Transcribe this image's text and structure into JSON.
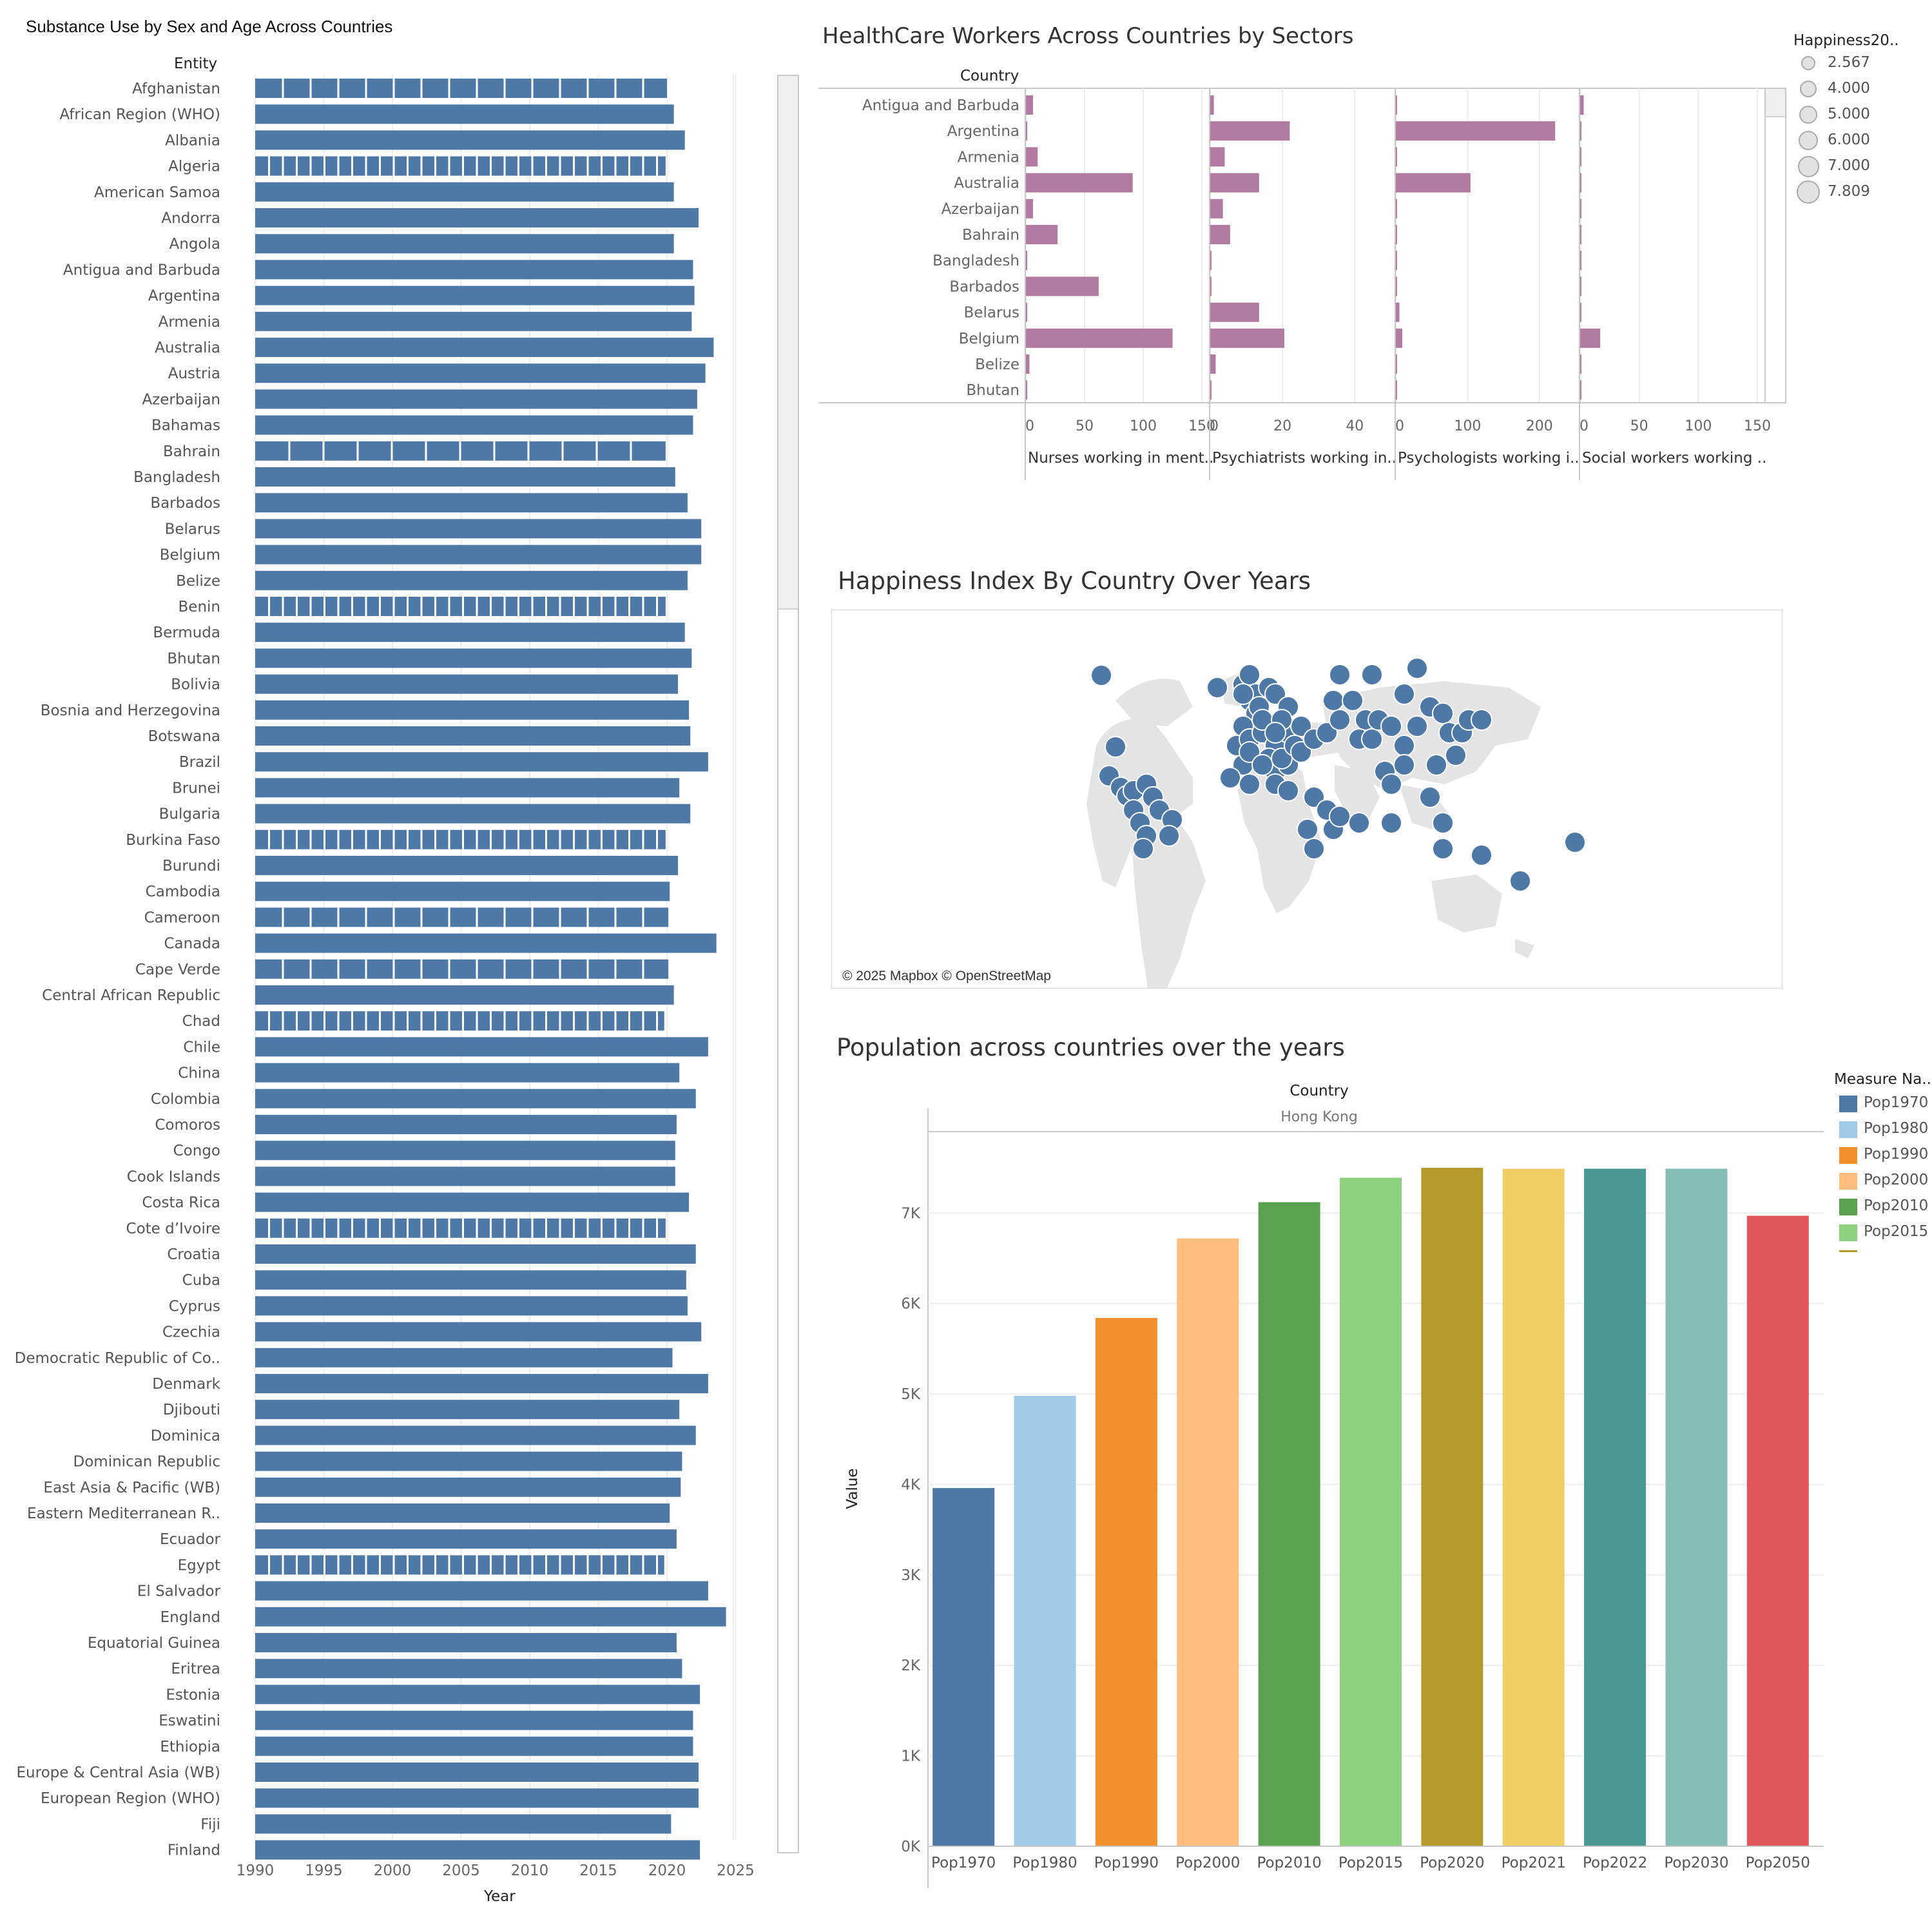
{
  "substance": {
    "title": "Substance Use by Sex and Age Across Countries",
    "entity_header": "Entity",
    "xlabel": "Year",
    "color": "#4e79a7"
  },
  "healthcare": {
    "title": "HealthCare Workers Across Countries by Sectors",
    "row_header": "Country",
    "color": "#b07aa1"
  },
  "happiness_legend": {
    "title": "Happiness20..",
    "values": [
      "2.567",
      "4.000",
      "5.000",
      "6.000",
      "7.000",
      "7.809"
    ]
  },
  "map": {
    "title": "Happiness Index By Country Over Years",
    "attribution": "© 2025 Mapbox © OpenStreetMap",
    "dot_color": "#4e79a7"
  },
  "population": {
    "title": "Population across countries over the years",
    "column_header": "Country",
    "country": "Hong Kong",
    "ylabel": "Value",
    "legend_title": "Measure Na..",
    "legend_items": [
      "Pop1970",
      "Pop1980",
      "Pop1990",
      "Pop2000",
      "Pop2010",
      "Pop2015"
    ]
  },
  "chart_data": [
    {
      "type": "bar",
      "title": "Substance Use by Sex and Age Across Countries",
      "ylabel": "Entity",
      "xlabel": "Year",
      "xlim": [
        1988,
        2029
      ],
      "xticks": [
        "1990",
        "1995",
        "2000",
        "2005",
        "2010",
        "2015",
        "2020",
        "2025"
      ],
      "grid": true,
      "categories": [
        "Afghanistan",
        "African Region (WHO)",
        "Albania",
        "Algeria",
        "American Samoa",
        "Andorra",
        "Angola",
        "Antigua and Barbuda",
        "Argentina",
        "Armenia",
        "Australia",
        "Austria",
        "Azerbaijan",
        "Bahamas",
        "Bahrain",
        "Bangladesh",
        "Barbados",
        "Belarus",
        "Belgium",
        "Belize",
        "Benin",
        "Bermuda",
        "Bhutan",
        "Bolivia",
        "Bosnia and Herzegovina",
        "Botswana",
        "Brazil",
        "Brunei",
        "Bulgaria",
        "Burkina Faso",
        "Burundi",
        "Cambodia",
        "Cameroon",
        "Canada",
        "Cape Verde",
        "Central African Republic",
        "Chad",
        "Chile",
        "China",
        "Colombia",
        "Comoros",
        "Congo",
        "Cook Islands",
        "Costa Rica",
        "Cote d’Ivoire",
        "Croatia",
        "Cuba",
        "Cyprus",
        "Czechia",
        "Democratic Republic of Co..",
        "Denmark",
        "Djibouti",
        "Dominica",
        "Dominican Republic",
        "East Asia & Pacific (WB)",
        "Eastern Mediterranean R..",
        "Ecuador",
        "Egypt",
        "El Salvador",
        "England",
        "Equatorial Guinea",
        "Eritrea",
        "Estonia",
        "Eswatini",
        "Ethiopia",
        "Europe & Central Asia (WB)",
        "European Region (WHO)",
        "Fiji",
        "Finland"
      ],
      "values": [
        2020,
        2020.5,
        2021.3,
        2019.9,
        2020.5,
        2022.3,
        2020.5,
        2021.9,
        2022,
        2021.8,
        2023.4,
        2022.8,
        2022.2,
        2021.9,
        2019.9,
        2020.6,
        2021.5,
        2022.5,
        2022.5,
        2021.5,
        2019.9,
        2021.3,
        2021.8,
        2020.8,
        2021.6,
        2021.7,
        2023,
        2020.9,
        2021.7,
        2019.9,
        2020.8,
        2020.2,
        2020.1,
        2023.6,
        2020.1,
        2020.5,
        2019.8,
        2023,
        2020.9,
        2022.1,
        2020.7,
        2020.6,
        2020.6,
        2021.6,
        2019.9,
        2022.1,
        2021.4,
        2021.5,
        2022.5,
        2020.4,
        2023,
        2020.9,
        2022.1,
        2021.1,
        2021,
        2020.2,
        2020.7,
        2019.8,
        2023,
        2024.3,
        2020.7,
        2021.1,
        2022.4,
        2021.9,
        2021.9,
        2022.3,
        2022.3,
        2020.3,
        2022.4
      ]
    },
    {
      "type": "bar",
      "title": "HealthCare Workers Across Countries by Sectors",
      "categories": [
        "Antigua and Barbuda",
        "Argentina",
        "Armenia",
        "Australia",
        "Azerbaijan",
        "Bahrain",
        "Bangladesh",
        "Barbados",
        "Belarus",
        "Belgium",
        "Belize",
        "Bhutan"
      ],
      "series": [
        {
          "name": "Nurses working in ment..",
          "xlim": [
            0,
            156
          ],
          "xticks": [
            "0",
            "50",
            "100",
            "150"
          ],
          "values": [
            6,
            0,
            10,
            91,
            6,
            27,
            0.5,
            62,
            0,
            125,
            3,
            1
          ]
        },
        {
          "name": "Psychiatrists working in..",
          "xlim": [
            0,
            51
          ],
          "xticks": [
            "0",
            "20",
            "40"
          ],
          "values": [
            1,
            22,
            4,
            13.5,
            3.5,
            5.5,
            0.3,
            0,
            13.5,
            20.5,
            1.5,
            0.3
          ]
        },
        {
          "name": "Psychologists working i..",
          "xlim": [
            0,
            255
          ],
          "xticks": [
            "0",
            "100",
            "200"
          ],
          "values": [
            0,
            222,
            1,
            104,
            1,
            1,
            0.5,
            0,
            5,
            9,
            1,
            0
          ]
        },
        {
          "name": "Social workers working ..",
          "xlim": [
            0,
            156
          ],
          "xticks": [
            "0",
            "50",
            "100",
            "150"
          ],
          "values": [
            3,
            0,
            1,
            0.5,
            0.5,
            0.5,
            0,
            0,
            0,
            17,
            0,
            0
          ]
        }
      ]
    },
    {
      "type": "scatter",
      "title": "Happiness Index By Country Over Years",
      "size_legend": [
        2.567,
        4.0,
        5.0,
        6.0,
        7.0,
        7.809
      ],
      "note": "map of point markers"
    },
    {
      "type": "bar",
      "title": "Population across countries over the years",
      "xlabel": "Hong Kong",
      "ylabel": "Value",
      "ylim": [
        0,
        7900
      ],
      "yticks": [
        "0K",
        "1K",
        "2K",
        "3K",
        "4K",
        "5K",
        "6K",
        "7K"
      ],
      "categories": [
        "Pop1970",
        "Pop1980",
        "Pop1990",
        "Pop2000",
        "Pop2010",
        "Pop2015",
        "Pop2020",
        "Pop2021",
        "Pop2022",
        "Pop2030",
        "Pop2050"
      ],
      "values": [
        3960,
        4980,
        5840,
        6720,
        7120,
        7390,
        7500,
        7490,
        7490,
        7490,
        6970
      ],
      "colors": [
        "#4e79a7",
        "#a0cbe8",
        "#f28e2b",
        "#ffbe7d",
        "#59a14f",
        "#8cd17d",
        "#b6992d",
        "#f1ce63",
        "#499894",
        "#86bcb6",
        "#e15759"
      ]
    }
  ]
}
